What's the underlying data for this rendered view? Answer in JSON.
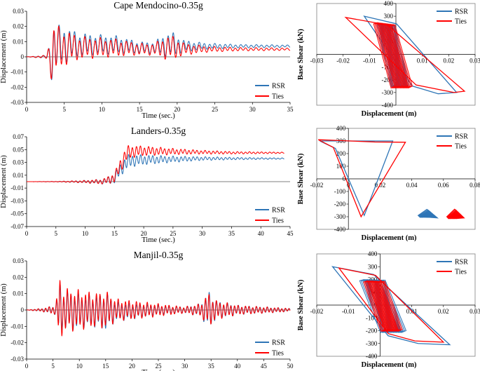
{
  "figure": {
    "legend": [
      "RSR",
      "Ties"
    ],
    "colors": {
      "RSR": "#2E75B6",
      "Ties": "#FF0000"
    }
  },
  "chart_data": [
    {
      "type": "line",
      "title": "Cape Mendocino-0.35g",
      "xlabel": "Time (sec.)",
      "ylabel": "Displacement (m)",
      "xlim": [
        0,
        35
      ],
      "ylim": [
        -0.03,
        0.03
      ],
      "xticks": [
        0,
        5,
        10,
        15,
        20,
        25,
        30,
        35
      ],
      "yticks": [
        -0.03,
        -0.02,
        -0.01,
        0,
        0.01,
        0.02,
        0.03
      ],
      "ytick_labels": [
        "-0.03",
        "-0.02",
        "-0.01",
        "0",
        "0.01",
        "0.02",
        "0.03"
      ],
      "series": [
        {
          "name": "RSR",
          "x": [
            0,
            2.5,
            3.0,
            3.4,
            3.7,
            4.2,
            4.7,
            5.3,
            6.0,
            7.0,
            9.0,
            12.0,
            15.0,
            17.0,
            18.5,
            19.5,
            21.0,
            24.0,
            28.0,
            35.0
          ],
          "baseline": [
            0,
            0,
            0.002,
            -0.003,
            0.006,
            0.007,
            0.008,
            0.008,
            0.008,
            0.008,
            0.008,
            0.008,
            0.006,
            0.006,
            0.008,
            0.008,
            0.007,
            0.007,
            0.007,
            0.007
          ],
          "amplitude": [
            0,
            0.001,
            0.006,
            0.016,
            0.019,
            0.014,
            0.013,
            0.012,
            0.01,
            0.008,
            0.007,
            0.006,
            0.004,
            0.004,
            0.008,
            0.008,
            0.004,
            0.002,
            0.0012,
            0.0008
          ]
        },
        {
          "name": "Ties",
          "x": [
            0,
            2.5,
            3.0,
            3.4,
            3.7,
            4.2,
            4.7,
            5.3,
            6.0,
            7.0,
            9.0,
            12.0,
            15.0,
            17.0,
            18.5,
            19.5,
            21.0,
            24.0,
            28.0,
            35.0
          ],
          "baseline": [
            0,
            0,
            0.002,
            -0.003,
            0.005,
            0.006,
            0.006,
            0.006,
            0.006,
            0.006,
            0.006,
            0.006,
            0.005,
            0.005,
            0.006,
            0.006,
            0.005,
            0.005,
            0.005,
            0.005
          ],
          "amplitude": [
            0,
            0.001,
            0.007,
            0.017,
            0.021,
            0.015,
            0.013,
            0.012,
            0.01,
            0.008,
            0.007,
            0.006,
            0.004,
            0.004,
            0.008,
            0.008,
            0.004,
            0.002,
            0.0012,
            0.0008
          ]
        }
      ]
    },
    {
      "type": "line",
      "title": "Landers-0.35g",
      "xlabel": "Time (sec.)",
      "ylabel": "Displacement (m)",
      "xlim": [
        0,
        45
      ],
      "ylim": [
        -0.07,
        0.07
      ],
      "xticks": [
        0,
        5,
        10,
        15,
        20,
        25,
        30,
        35,
        40,
        45
      ],
      "yticks": [
        -0.07,
        -0.05,
        -0.03,
        -0.01,
        0.01,
        0.03,
        0.05,
        0.07
      ],
      "ytick_labels": [
        "-0.07",
        "-0.05",
        "-0.03",
        "-0.01",
        "0.01",
        "0.03",
        "0.05",
        "0.07"
      ],
      "series": [
        {
          "name": "RSR",
          "x": [
            0,
            5,
            10,
            13,
            15,
            16,
            17,
            18,
            20,
            25,
            30,
            35,
            44
          ],
          "baseline": [
            0,
            0,
            0,
            0,
            0.005,
            0.018,
            0.03,
            0.033,
            0.034,
            0.035,
            0.036,
            0.036,
            0.036
          ],
          "amplitude": [
            0,
            0.0003,
            0.002,
            0.004,
            0.008,
            0.01,
            0.012,
            0.01,
            0.008,
            0.005,
            0.003,
            0.002,
            0.001
          ]
        },
        {
          "name": "Ties",
          "x": [
            0,
            5,
            10,
            13,
            15,
            16,
            17,
            18,
            20,
            25,
            30,
            35,
            44
          ],
          "baseline": [
            0,
            0,
            0,
            0,
            0.006,
            0.025,
            0.043,
            0.047,
            0.048,
            0.047,
            0.046,
            0.045,
            0.045
          ],
          "amplitude": [
            0,
            0.0003,
            0.002,
            0.004,
            0.008,
            0.011,
            0.013,
            0.01,
            0.008,
            0.005,
            0.003,
            0.002,
            0.001
          ]
        }
      ]
    },
    {
      "type": "line",
      "title": "Manjil-0.35g",
      "xlabel": "Time (sec.)",
      "ylabel": "Displacement (m)",
      "xlim": [
        0,
        50
      ],
      "ylim": [
        -0.03,
        0.03
      ],
      "xticks": [
        0,
        5,
        10,
        15,
        20,
        25,
        30,
        35,
        40,
        45,
        50
      ],
      "yticks": [
        -0.03,
        -0.02,
        -0.01,
        0,
        0.01,
        0.02,
        0.03
      ],
      "ytick_labels": [
        "-0.03",
        "-0.02",
        "-0.01",
        "0",
        "0.01",
        "0.02",
        "0.03"
      ],
      "series": [
        {
          "name": "RSR",
          "x": [
            0,
            3,
            5.5,
            6.2,
            7,
            9,
            11,
            13,
            15,
            17,
            20,
            25,
            30,
            33,
            34.5,
            36,
            40,
            45,
            50
          ],
          "baseline": [
            0,
            0,
            0,
            0,
            0,
            -0.001,
            -0.001,
            -0.001,
            -0.001,
            -0.001,
            -0.001,
            0,
            0,
            0,
            0,
            0,
            0,
            0,
            0
          ],
          "amplitude": [
            0,
            0.001,
            0.003,
            0.018,
            0.012,
            0.012,
            0.01,
            0.01,
            0.012,
            0.006,
            0.005,
            0.003,
            0.002,
            0.004,
            0.012,
            0.006,
            0.003,
            0.002,
            0.001
          ]
        },
        {
          "name": "Ties",
          "x": [
            0,
            3,
            5.5,
            6.2,
            7,
            9,
            11,
            13,
            15,
            17,
            20,
            25,
            30,
            33,
            34.5,
            36,
            40,
            45,
            50
          ],
          "baseline": [
            0,
            0,
            0,
            0,
            0,
            0,
            0,
            0,
            0,
            0,
            0,
            0,
            0,
            0,
            0,
            0,
            0,
            0,
            0
          ],
          "amplitude": [
            0,
            0.001,
            0.003,
            0.022,
            0.014,
            0.013,
            0.012,
            0.011,
            0.012,
            0.007,
            0.006,
            0.004,
            0.002,
            0.004,
            0.011,
            0.006,
            0.003,
            0.002,
            0.001
          ]
        }
      ]
    },
    {
      "type": "scatter",
      "title": "",
      "xlabel": "Displacement (m)",
      "ylabel": "Base Shear (kN)",
      "xlim": [
        -0.03,
        0.03
      ],
      "ylim": [
        -400,
        400
      ],
      "xticks": [
        -0.03,
        -0.02,
        -0.01,
        0,
        0.01,
        0.02,
        0.03
      ],
      "xtick_labels": [
        "-0.03",
        "-0.02",
        "-0.01",
        "0",
        "0.01",
        "0.02",
        "0.03"
      ],
      "yticks": [
        -400,
        -300,
        -200,
        -100,
        0,
        100,
        200,
        300,
        400
      ],
      "series": [
        {
          "name": "RSR",
          "x": [
            -0.012,
            0.023,
            0.016,
            -0.006,
            0.004,
            -0.005
          ],
          "y": [
            300,
            -300,
            -310,
            240,
            -240,
            100
          ]
        },
        {
          "name": "Ties",
          "x": [
            -0.019,
            0.026,
            0.022,
            -0.007,
            0.005,
            -0.004
          ],
          "y": [
            290,
            -290,
            -300,
            250,
            -250,
            80
          ]
        }
      ]
    },
    {
      "type": "scatter",
      "title": "",
      "xlabel": "Displacement (m)",
      "ylabel": "Base Shear (kN)",
      "xlim": [
        -0.02,
        0.08
      ],
      "ylim": [
        -400,
        400
      ],
      "xticks": [
        -0.02,
        0,
        0.02,
        0.04,
        0.06,
        0.08
      ],
      "xtick_labels": [
        "-0.02",
        "0",
        "0.02",
        "0.04",
        "0.06",
        "0.08"
      ],
      "yticks": [
        -400,
        -300,
        -200,
        -100,
        0,
        100,
        200,
        300,
        400
      ],
      "series": [
        {
          "name": "RSR",
          "x": [
            -0.018,
            0.01,
            0.028,
            0.055,
            0.045,
            0.018
          ],
          "y": [
            300,
            -290,
            300,
            -300,
            -290,
            290
          ]
        },
        {
          "name": "Ties",
          "x": [
            -0.019,
            0.008,
            0.036,
            0.072,
            0.063,
            0.02
          ],
          "y": [
            310,
            -300,
            290,
            -300,
            -300,
            300
          ]
        }
      ]
    },
    {
      "type": "scatter",
      "title": "",
      "xlabel": "Displacement (m)",
      "ylabel": "Base Shear (kN)",
      "xlim": [
        -0.02,
        0.03
      ],
      "ylim": [
        -400,
        400
      ],
      "xticks": [
        -0.02,
        -0.01,
        0,
        0.01,
        0.02,
        0.03
      ],
      "xtick_labels": [
        "-0.02",
        "-0.01",
        "0",
        "0.01",
        "0.02",
        "0.03"
      ],
      "yticks": [
        -400,
        -300,
        -200,
        -100,
        0,
        100,
        200,
        300,
        400
      ],
      "series": [
        {
          "name": "RSR",
          "x": [
            -0.015,
            0.022,
            0.012,
            -0.005,
            0.007,
            -0.009
          ],
          "y": [
            300,
            -310,
            -300,
            200,
            -200,
            150
          ]
        },
        {
          "name": "Ties",
          "x": [
            -0.013,
            0.02,
            0.011,
            -0.004,
            0.006,
            -0.008
          ],
          "y": [
            290,
            -290,
            -280,
            190,
            -190,
            140
          ]
        }
      ]
    }
  ]
}
